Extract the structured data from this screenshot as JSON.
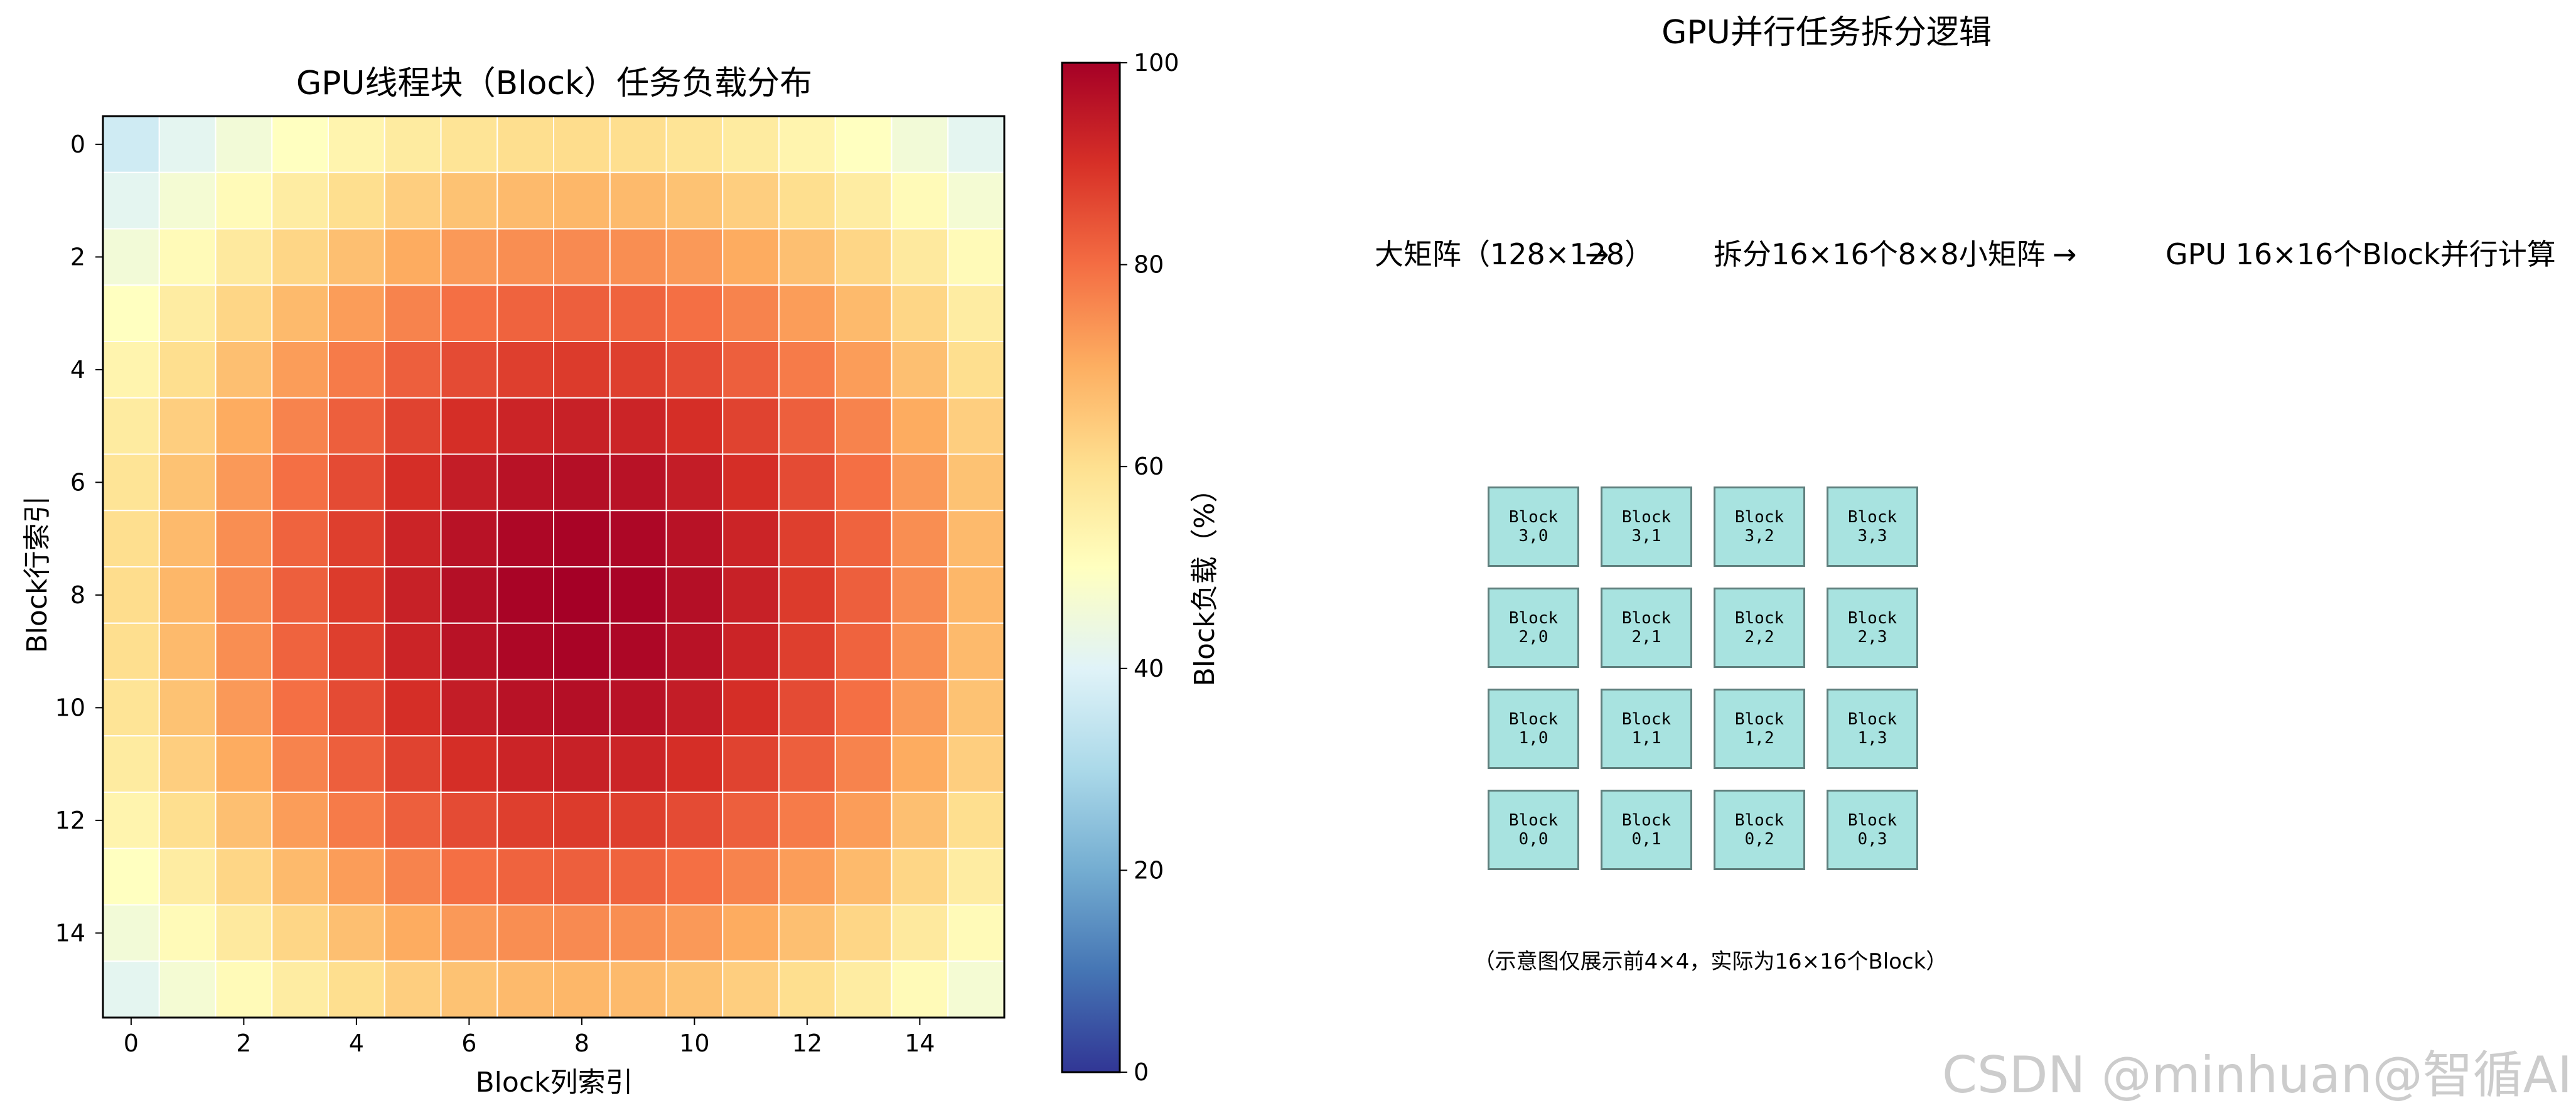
{
  "chart_data": [
    {
      "type": "heatmap",
      "title": "GPU线程块（Block）任务负载分布",
      "xlabel": "Block列索引",
      "ylabel": "Block行索引",
      "xticks": [
        "0",
        "2",
        "4",
        "6",
        "8",
        "10",
        "12",
        "14"
      ],
      "yticks": [
        "0",
        "2",
        "4",
        "6",
        "8",
        "10",
        "12",
        "14"
      ],
      "rows": 16,
      "cols": 16,
      "center": [
        8,
        8
      ],
      "values_formula": "100 * exp(-((row-8)^2 + (col-8)^2) / 128)",
      "colorbar": {
        "label": "Block负载（%）",
        "range": [
          0,
          100
        ],
        "ticks": [
          "0",
          "20",
          "40",
          "60",
          "80",
          "100"
        ],
        "colormap": "RdYlBu_r"
      },
      "grid_lines": "white"
    }
  ],
  "diagram": {
    "title": "GPU并行任务拆分逻辑",
    "steps": [
      "大矩阵（128×128）",
      "→",
      "拆分16×16个8×8小矩阵",
      "→",
      "GPU 16×16个Block并行计算"
    ],
    "blocks": [
      [
        "Block\n3,0",
        "Block\n3,1",
        "Block\n3,2",
        "Block\n3,3"
      ],
      [
        "Block\n2,0",
        "Block\n2,1",
        "Block\n2,2",
        "Block\n2,3"
      ],
      [
        "Block\n1,0",
        "Block\n1,1",
        "Block\n1,2",
        "Block\n1,3"
      ],
      [
        "Block\n0,0",
        "Block\n0,1",
        "Block\n0,2",
        "Block\n0,3"
      ]
    ],
    "note": "（示意图仅展示前4×4，实际为16×16个Block）",
    "block_color": "#a8e3e0"
  },
  "watermark": "CSDN @minhuan@智循AI"
}
